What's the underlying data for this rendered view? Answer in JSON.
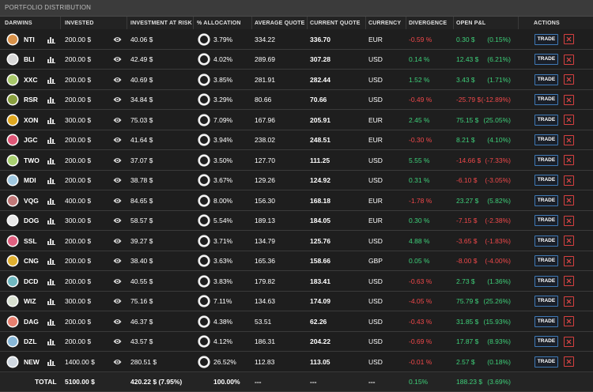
{
  "header": {
    "title": "PORTFOLIO DISTRIBUTION"
  },
  "table": {
    "columns": [
      "DARWINS",
      "INVESTED",
      "INVESTMENT AT RISK",
      "% ALLOCATION",
      "AVERAGE QUOTE",
      "CURRENT QUOTE",
      "CURRENCY",
      "DIVERGENCE",
      "OPEN P&L",
      "ACTIONS"
    ],
    "rows": [
      {
        "darwin": "NTI",
        "color": "#d9924a",
        "invested": "200.00 $",
        "at_risk": "40.06 $",
        "allocation": "3.79%",
        "average": "334.22",
        "current": "336.70",
        "currency": "EUR",
        "divergence": "-0.59 %",
        "pnl": "0.30 $",
        "pnl_pct": "(0.15%)",
        "action": "TRADE"
      },
      {
        "darwin": "BLI",
        "color": "#d8d8d8",
        "invested": "200.00 $",
        "at_risk": "42.49 $",
        "allocation": "4.02%",
        "average": "289.69",
        "current": "307.28",
        "currency": "USD",
        "divergence": "0.14 %",
        "pnl": "12.43 $",
        "pnl_pct": "(6.21%)",
        "action": "TRADE"
      },
      {
        "darwin": "XXC",
        "color": "#a8c86a",
        "invested": "200.00 $",
        "at_risk": "40.69 $",
        "allocation": "3.85%",
        "average": "281.91",
        "current": "282.44",
        "currency": "USD",
        "divergence": "1.52 %",
        "pnl": "3.43 $",
        "pnl_pct": "(1.71%)",
        "action": "TRADE"
      },
      {
        "darwin": "RSR",
        "color": "#8aa040",
        "invested": "200.00 $",
        "at_risk": "34.84 $",
        "allocation": "3.29%",
        "average": "80.66",
        "current": "70.66",
        "currency": "USD",
        "divergence": "-0.49 %",
        "pnl": "-25.79 $",
        "pnl_pct": "(-12.89%)",
        "action": "TRADE"
      },
      {
        "darwin": "XON",
        "color": "#e0a820",
        "invested": "300.00 $",
        "at_risk": "75.03 $",
        "allocation": "7.09%",
        "average": "167.96",
        "current": "205.91",
        "currency": "EUR",
        "divergence": "2.45 %",
        "pnl": "75.15 $",
        "pnl_pct": "(25.05%)",
        "action": "TRADE"
      },
      {
        "darwin": "JGC",
        "color": "#e05878",
        "invested": "200.00 $",
        "at_risk": "41.64 $",
        "allocation": "3.94%",
        "average": "238.02",
        "current": "248.51",
        "currency": "EUR",
        "divergence": "-0.30 %",
        "pnl": "8.21 $",
        "pnl_pct": "(4.10%)",
        "action": "TRADE"
      },
      {
        "darwin": "TWO",
        "color": "#a8d070",
        "invested": "200.00 $",
        "at_risk": "37.07 $",
        "allocation": "3.50%",
        "average": "127.70",
        "current": "111.25",
        "currency": "USD",
        "divergence": "5.55 %",
        "pnl": "-14.66 $",
        "pnl_pct": "(-7.33%)",
        "action": "TRADE"
      },
      {
        "darwin": "MDI",
        "color": "#a0c8e0",
        "invested": "200.00 $",
        "at_risk": "38.78 $",
        "allocation": "3.67%",
        "average": "129.26",
        "current": "124.92",
        "currency": "USD",
        "divergence": "0.31 %",
        "pnl": "-6.10 $",
        "pnl_pct": "(-3.05%)",
        "action": "TRADE"
      },
      {
        "darwin": "VQG",
        "color": "#c07878",
        "invested": "400.00 $",
        "at_risk": "84.65 $",
        "allocation": "8.00%",
        "average": "156.30",
        "current": "168.18",
        "currency": "EUR",
        "divergence": "-1.78 %",
        "pnl": "23.27 $",
        "pnl_pct": "(5.82%)",
        "action": "TRADE"
      },
      {
        "darwin": "DOG",
        "color": "#e8e8e8",
        "invested": "300.00 $",
        "at_risk": "58.57 $",
        "allocation": "5.54%",
        "average": "189.13",
        "current": "184.05",
        "currency": "EUR",
        "divergence": "0.30 %",
        "pnl": "-7.15 $",
        "pnl_pct": "(-2.38%)",
        "action": "TRADE"
      },
      {
        "darwin": "SSL",
        "color": "#e06080",
        "invested": "200.00 $",
        "at_risk": "39.27 $",
        "allocation": "3.71%",
        "average": "134.79",
        "current": "125.76",
        "currency": "USD",
        "divergence": "4.88 %",
        "pnl": "-3.65 $",
        "pnl_pct": "(-1.83%)",
        "action": "TRADE"
      },
      {
        "darwin": "CNG",
        "color": "#e0b030",
        "invested": "200.00 $",
        "at_risk": "38.40 $",
        "allocation": "3.63%",
        "average": "165.36",
        "current": "158.66",
        "currency": "GBP",
        "divergence": "0.05 %",
        "pnl": "-8.00 $",
        "pnl_pct": "(-4.00%)",
        "action": "TRADE"
      },
      {
        "darwin": "DCD",
        "color": "#70b8c0",
        "invested": "200.00 $",
        "at_risk": "40.55 $",
        "allocation": "3.83%",
        "average": "179.82",
        "current": "183.41",
        "currency": "USD",
        "divergence": "-0.63 %",
        "pnl": "2.73 $",
        "pnl_pct": "(1.36%)",
        "action": "TRADE"
      },
      {
        "darwin": "WIZ",
        "color": "#d8e0d0",
        "invested": "300.00 $",
        "at_risk": "75.16 $",
        "allocation": "7.11%",
        "average": "134.63",
        "current": "174.09",
        "currency": "USD",
        "divergence": "-4.05 %",
        "pnl": "75.79 $",
        "pnl_pct": "(25.26%)",
        "action": "TRADE"
      },
      {
        "darwin": "DAG",
        "color": "#e88070",
        "invested": "200.00 $",
        "at_risk": "46.37 $",
        "allocation": "4.38%",
        "average": "53.51",
        "current": "62.26",
        "currency": "USD",
        "divergence": "-0.43 %",
        "pnl": "31.85 $",
        "pnl_pct": "(15.93%)",
        "action": "TRADE"
      },
      {
        "darwin": "DZL",
        "color": "#88b8d8",
        "invested": "200.00 $",
        "at_risk": "43.57 $",
        "allocation": "4.12%",
        "average": "186.31",
        "current": "204.22",
        "currency": "USD",
        "divergence": "-0.69 %",
        "pnl": "17.87 $",
        "pnl_pct": "(8.93%)",
        "action": "TRADE"
      },
      {
        "darwin": "NEW",
        "color": "#d0d8e0",
        "invested": "1400.00 $",
        "at_risk": "280.51 $",
        "allocation": "26.52%",
        "average": "112.83",
        "current": "113.05",
        "currency": "USD",
        "divergence": "-0.01 %",
        "pnl": "2.57 $",
        "pnl_pct": "(0.18%)",
        "action": "TRADE"
      }
    ],
    "total": {
      "label": "TOTAL",
      "invested": "5100.00 $",
      "at_risk": "420.22 $ (7.95%)",
      "allocation": "100.00%",
      "average": "---",
      "current": "---",
      "currency": "---",
      "divergence": "0.15%",
      "pnl": "188.23 $",
      "pnl_pct": "(3.69%)"
    }
  }
}
